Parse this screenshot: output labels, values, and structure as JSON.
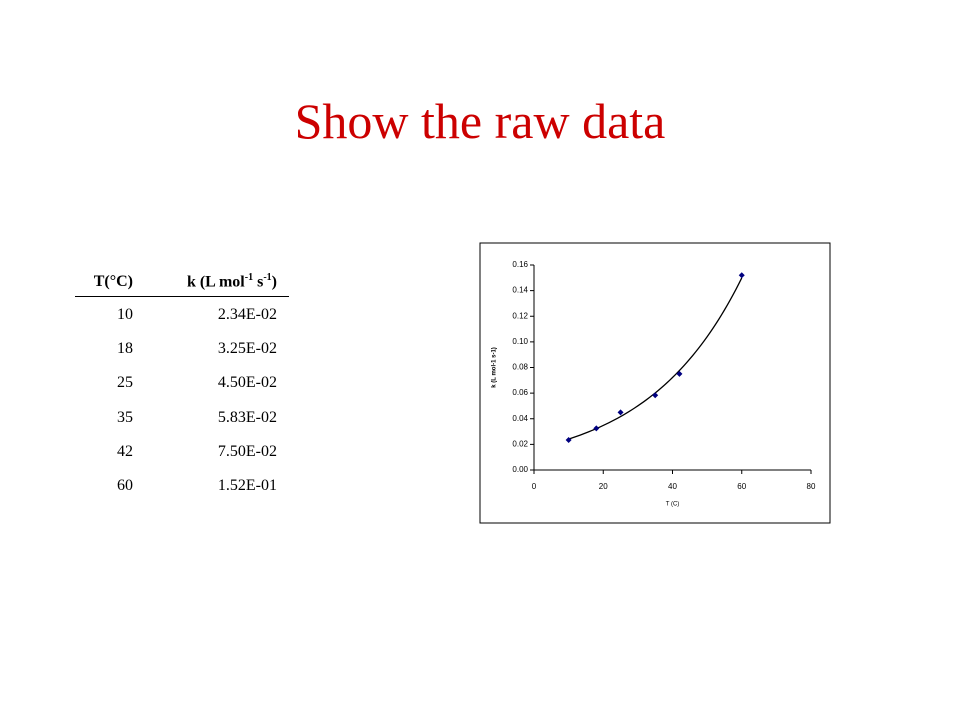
{
  "title": "Show the raw data",
  "table": {
    "header": [
      [
        "T(°C)"
      ],
      [
        "k (L mol",
        "-1",
        " s",
        "-1",
        ")"
      ]
    ],
    "rows": [
      [
        10,
        "2.34E-02"
      ],
      [
        18,
        "3.25E-02"
      ],
      [
        25,
        "4.50E-02"
      ],
      [
        35,
        "5.83E-02"
      ],
      [
        42,
        "7.50E-02"
      ],
      [
        60,
        "1.52E-01"
      ]
    ]
  },
  "chart_data": {
    "type": "scatter",
    "x_label": "T (C)",
    "y_label": "k (L mol-1 s-1)",
    "x": [
      10,
      18,
      25,
      35,
      42,
      60
    ],
    "values": [
      0.0234,
      0.0325,
      0.045,
      0.0583,
      0.075,
      0.152
    ],
    "color": "#000080",
    "trendline": "exponential",
    "xlim": [
      0,
      80
    ],
    "xticks": [
      0,
      20,
      40,
      60,
      80
    ],
    "ylim": [
      0,
      0.16
    ],
    "yticks": [
      {
        "value": 0,
        "label": "0.00"
      },
      0.02,
      0.04,
      0.06,
      0.08,
      {
        "value": 0.1,
        "label": "0.10"
      },
      0.12,
      0.14,
      0.16
    ]
  }
}
